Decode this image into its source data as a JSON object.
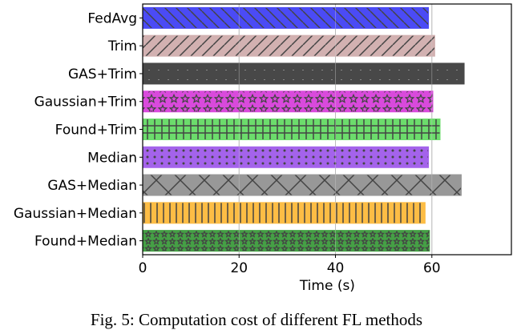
{
  "chart_data": {
    "type": "bar",
    "orientation": "horizontal",
    "categories": [
      "FedAvg",
      "Trim",
      "GAS+Trim",
      "Gaussian+Trim",
      "Found+Trim",
      "Median",
      "GAS+Median",
      "Gaussian+Median",
      "Found+Median"
    ],
    "values": [
      59.3,
      60.6,
      66.7,
      60.2,
      61.7,
      59.3,
      66.1,
      58.6,
      59.5
    ],
    "colors": [
      "#4b4bf5",
      "#d2b1b1",
      "#484848",
      "#d94adc",
      "#6cdc6c",
      "#a463eb",
      "#989898",
      "#fdbd45",
      "#45a045"
    ],
    "patterns": [
      "diag-back",
      "diag-fwd",
      "dash",
      "stars",
      "grid",
      "dots",
      "cross",
      "vertical",
      "small-stars"
    ],
    "title": "",
    "xlabel": "Time (s)",
    "ylabel": "",
    "xlim": [
      0,
      76.5
    ],
    "xticks": [
      0,
      20,
      40,
      60
    ],
    "grid": "vertical"
  },
  "caption": "Fig. 5: Computation cost of different FL methods"
}
